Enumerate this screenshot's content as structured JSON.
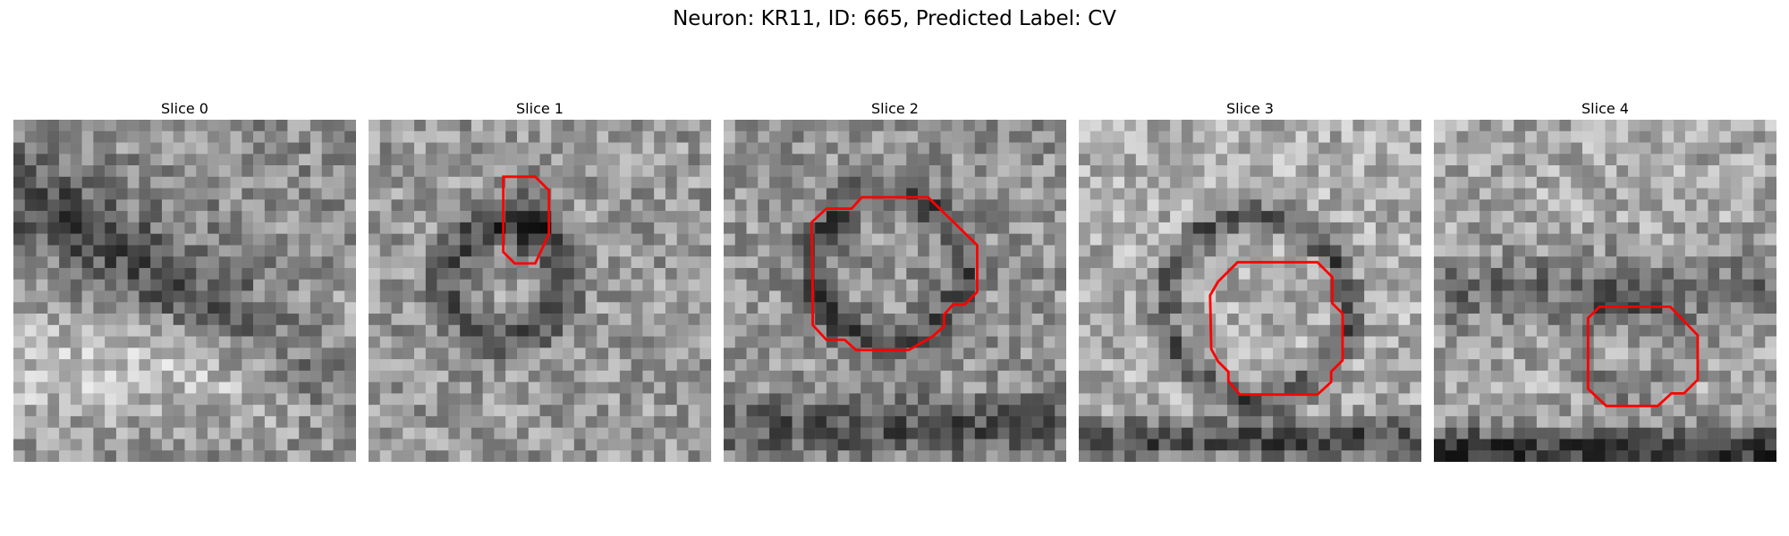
{
  "figure": {
    "suptitle": "Neuron: KR11, ID: 665, Predicted Label: CV"
  },
  "panels": [
    {
      "title": "Slice 0",
      "has_contour": false
    },
    {
      "title": "Slice 1",
      "has_contour": true
    },
    {
      "title": "Slice 2",
      "has_contour": true
    },
    {
      "title": "Slice 3",
      "has_contour": true
    },
    {
      "title": "Slice 4",
      "has_contour": true
    }
  ],
  "colors": {
    "contour": "#ff0000",
    "colormap": "grayscale"
  }
}
